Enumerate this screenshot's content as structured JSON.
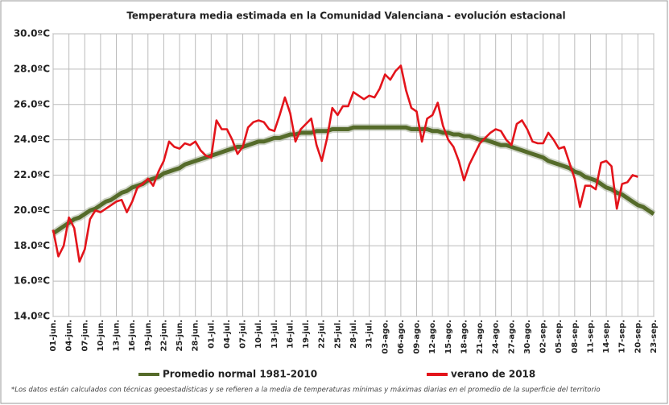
{
  "chart_data": {
    "type": "line",
    "title": "Temperatura media estimada en la Comunidad Valenciana - evolución estacional",
    "footnote": "*Los datos están calculados con técnicas geoestadísticas y se refieren a la media de temperaturas mínimas y máximas diarias en el promedio de la superficie del territorio",
    "categories": [
      "01-jun.",
      null,
      null,
      "04-jun.",
      null,
      null,
      "07-jun.",
      null,
      null,
      "10-jun.",
      null,
      null,
      "13-jun.",
      null,
      null,
      "16-jun.",
      null,
      null,
      "19-jun.",
      null,
      null,
      "22-jun.",
      null,
      null,
      "25-jun.",
      null,
      null,
      "28-jun.",
      null,
      null,
      "01-jul.",
      null,
      null,
      "04-jul.",
      null,
      null,
      "07-jul.",
      null,
      null,
      "10-jul.",
      null,
      null,
      "13-jul.",
      null,
      null,
      "16-jul.",
      null,
      null,
      "19-jul.",
      null,
      null,
      "22-jul.",
      null,
      null,
      "25-jul.",
      null,
      null,
      "28-jul.",
      null,
      null,
      "31-jul.",
      null,
      null,
      "03-ago.",
      null,
      null,
      "06-ago.",
      null,
      null,
      "09-ago.",
      null,
      null,
      "12-ago.",
      null,
      null,
      "15-ago.",
      null,
      null,
      "18-ago.",
      null,
      null,
      "21-ago.",
      null,
      null,
      "24-ago.",
      null,
      null,
      "27-ago.",
      null,
      null,
      "30-ago.",
      null,
      null,
      "02-sep.",
      null,
      null,
      "05-sep.",
      null,
      null,
      "08-sep.",
      null,
      null,
      "11-sep.",
      null,
      null,
      "14-sep.",
      null,
      null,
      "17-sep.",
      null,
      null,
      "20-sep.",
      null,
      null,
      "23-sep."
    ],
    "series": [
      {
        "name": "Promedio normal 1981-2010",
        "color": "#556b2a",
        "values": [
          18.7,
          18.9,
          19.1,
          19.3,
          19.5,
          19.6,
          19.8,
          20.0,
          20.1,
          20.3,
          20.5,
          20.6,
          20.8,
          21.0,
          21.1,
          21.3,
          21.4,
          21.5,
          21.7,
          21.8,
          21.9,
          22.1,
          22.2,
          22.3,
          22.4,
          22.6,
          22.7,
          22.8,
          22.9,
          23.0,
          23.1,
          23.2,
          23.3,
          23.4,
          23.5,
          23.6,
          23.6,
          23.7,
          23.8,
          23.9,
          23.9,
          24.0,
          24.1,
          24.1,
          24.2,
          24.3,
          24.3,
          24.4,
          24.4,
          24.4,
          24.5,
          24.5,
          24.5,
          24.6,
          24.6,
          24.6,
          24.6,
          24.7,
          24.7,
          24.7,
          24.7,
          24.7,
          24.7,
          24.7,
          24.7,
          24.7,
          24.7,
          24.7,
          24.6,
          24.6,
          24.6,
          24.6,
          24.5,
          24.5,
          24.4,
          24.4,
          24.3,
          24.3,
          24.2,
          24.2,
          24.1,
          24.0,
          24.0,
          23.9,
          23.8,
          23.7,
          23.7,
          23.6,
          23.5,
          23.4,
          23.3,
          23.2,
          23.1,
          23.0,
          22.8,
          22.7,
          22.6,
          22.5,
          22.4,
          22.2,
          22.1,
          21.9,
          21.8,
          21.7,
          21.5,
          21.3,
          21.2,
          21.0,
          20.9,
          20.7,
          20.5,
          20.3,
          20.2,
          20.0,
          19.8
        ]
      },
      {
        "name": "verano de 2018",
        "color": "#e3141b",
        "values": [
          18.9,
          17.4,
          18.0,
          19.6,
          19.0,
          17.1,
          17.8,
          19.5,
          20.0,
          19.9,
          20.1,
          20.3,
          20.5,
          20.6,
          19.9,
          20.5,
          21.3,
          21.5,
          21.8,
          21.4,
          22.2,
          22.8,
          23.9,
          23.6,
          23.5,
          23.8,
          23.7,
          23.9,
          23.4,
          23.1,
          23.0,
          25.1,
          24.6,
          24.6,
          24.0,
          23.2,
          23.6,
          24.7,
          25.0,
          25.1,
          25.0,
          24.6,
          24.5,
          25.4,
          26.4,
          25.5,
          23.9,
          24.6,
          24.9,
          25.2,
          23.7,
          22.8,
          24.1,
          25.8,
          25.4,
          25.9,
          25.9,
          26.7,
          26.5,
          26.3,
          26.5,
          26.4,
          26.9,
          27.7,
          27.4,
          27.9,
          28.2,
          26.8,
          25.8,
          25.6,
          23.9,
          25.2,
          25.4,
          26.1,
          24.8,
          24.0,
          23.6,
          22.8,
          21.7,
          22.6,
          23.2,
          23.8,
          24.1,
          24.4,
          24.6,
          24.5,
          24.0,
          23.7,
          24.9,
          25.1,
          24.6,
          23.9,
          23.8,
          23.8,
          24.4,
          24.0,
          23.5,
          23.6,
          22.7,
          21.8,
          20.2,
          21.4,
          21.4,
          21.2,
          22.7,
          22.8,
          22.5,
          20.1,
          21.5,
          21.6,
          22.0,
          21.9,
          null,
          null,
          null
        ]
      }
    ],
    "ylim": [
      14,
      30
    ],
    "yticks": [
      {
        "value": 14,
        "label": "14.0ºC"
      },
      {
        "value": 16,
        "label": "16.0ºC"
      },
      {
        "value": 18,
        "label": "18.0ºC"
      },
      {
        "value": 20,
        "label": "20.0ºC"
      },
      {
        "value": 22,
        "label": "22.0ºC"
      },
      {
        "value": 24,
        "label": "24.0ºC"
      },
      {
        "value": 26,
        "label": "26.0ºC"
      },
      {
        "value": 28,
        "label": "28.0ºC"
      },
      {
        "value": 30,
        "label": "30.0ºC"
      }
    ],
    "grid": true,
    "legend": "bottom"
  }
}
